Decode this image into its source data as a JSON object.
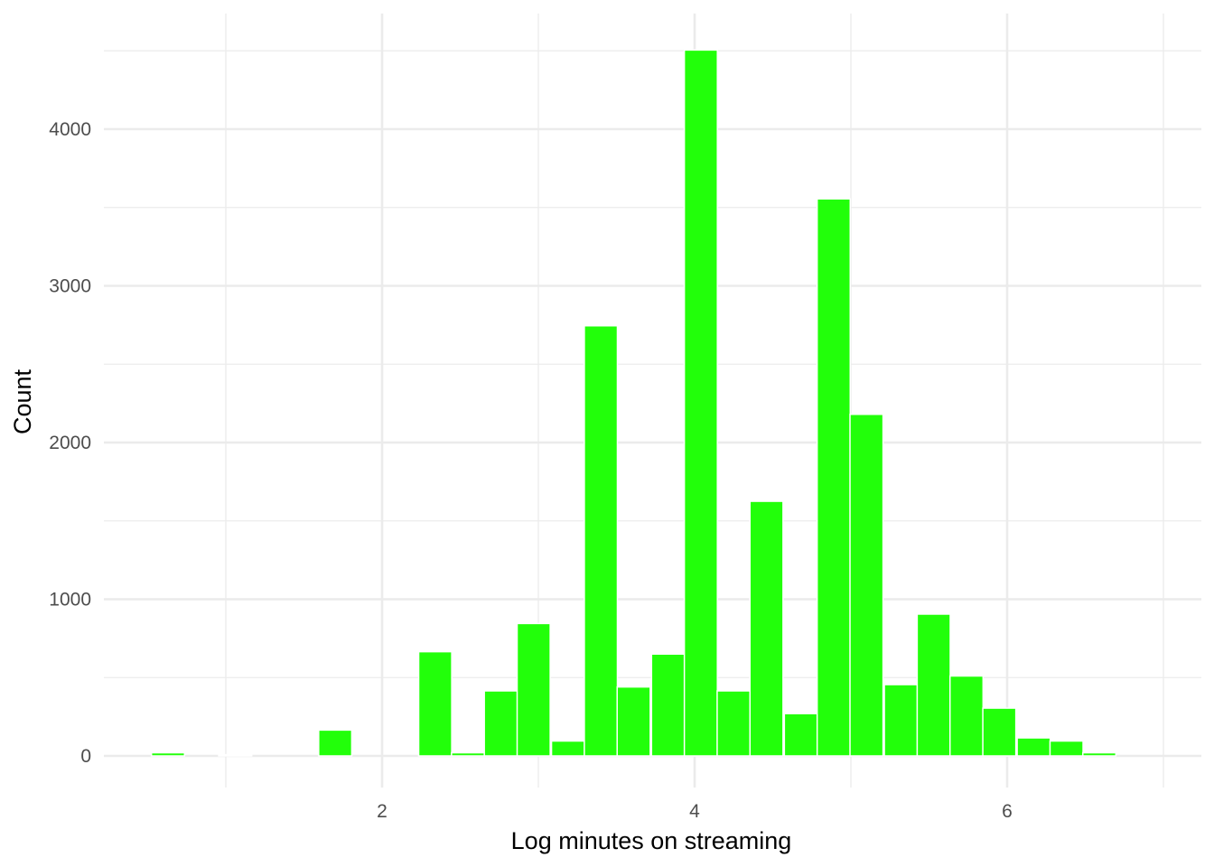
{
  "chart_data": {
    "type": "bar",
    "subtype": "histogram",
    "xlabel": "Log minutes on streaming",
    "ylabel": "Count",
    "xlim": [
      0.25,
      7.2
    ],
    "ylim": [
      -200,
      4700
    ],
    "x_ticks": [
      2,
      4,
      6
    ],
    "x_minor_ticks": [
      1,
      3,
      5,
      7
    ],
    "y_ticks": [
      0,
      1000,
      2000,
      3000,
      4000
    ],
    "y_minor_ticks": [
      500,
      1500,
      2500,
      3500,
      4500
    ],
    "grid": true,
    "bar_color": "#22ff0a",
    "bar_outline": "#ffffff",
    "bins": [
      {
        "x": 0.63,
        "value": 20
      },
      {
        "x": 0.85,
        "value": 0
      },
      {
        "x": 1.06,
        "value": 8
      },
      {
        "x": 1.27,
        "value": 0
      },
      {
        "x": 1.48,
        "value": 0
      },
      {
        "x": 1.7,
        "value": 165
      },
      {
        "x": 1.91,
        "value": 0
      },
      {
        "x": 2.12,
        "value": 0
      },
      {
        "x": 2.34,
        "value": 665
      },
      {
        "x": 2.55,
        "value": 20
      },
      {
        "x": 2.76,
        "value": 415
      },
      {
        "x": 2.97,
        "value": 845
      },
      {
        "x": 3.19,
        "value": 95
      },
      {
        "x": 3.4,
        "value": 2745
      },
      {
        "x": 3.61,
        "value": 440
      },
      {
        "x": 3.83,
        "value": 650
      },
      {
        "x": 4.04,
        "value": 4505
      },
      {
        "x": 4.25,
        "value": 415
      },
      {
        "x": 4.46,
        "value": 1625
      },
      {
        "x": 4.68,
        "value": 270
      },
      {
        "x": 4.89,
        "value": 3555
      },
      {
        "x": 5.1,
        "value": 2180
      },
      {
        "x": 5.32,
        "value": 455
      },
      {
        "x": 5.53,
        "value": 905
      },
      {
        "x": 5.74,
        "value": 510
      },
      {
        "x": 5.95,
        "value": 305
      },
      {
        "x": 6.17,
        "value": 115
      },
      {
        "x": 6.38,
        "value": 95
      },
      {
        "x": 6.59,
        "value": 20
      },
      {
        "x": 6.81,
        "value": 0
      }
    ],
    "bin_width": 0.2115
  }
}
